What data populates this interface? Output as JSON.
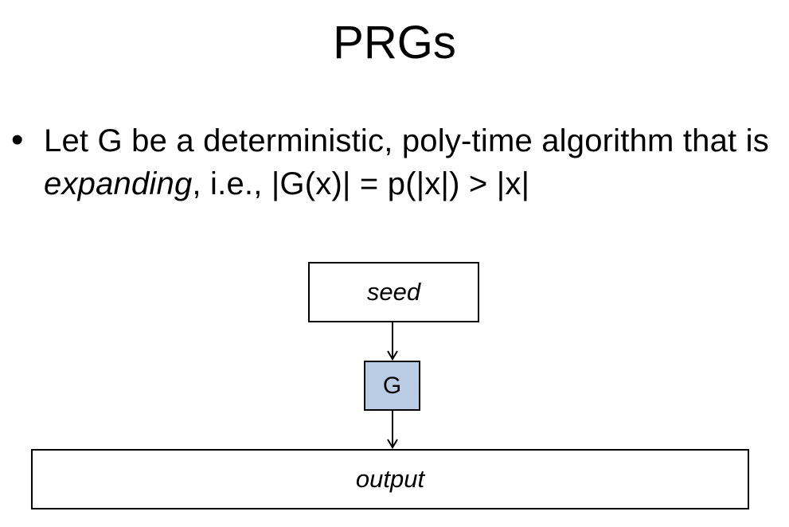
{
  "slide": {
    "title": "PRGs",
    "bullet_marker": "•",
    "bullet": {
      "part1": "Let G be a deterministic, poly-time algorithm that is ",
      "emphasis": "expanding",
      "part2": ", i.e., |G(x)| = p(|x|) > |x|"
    }
  },
  "diagram": {
    "seed_label": "seed",
    "generator_label": "G",
    "output_label": "output",
    "generator_fill": "#b9cce4"
  }
}
